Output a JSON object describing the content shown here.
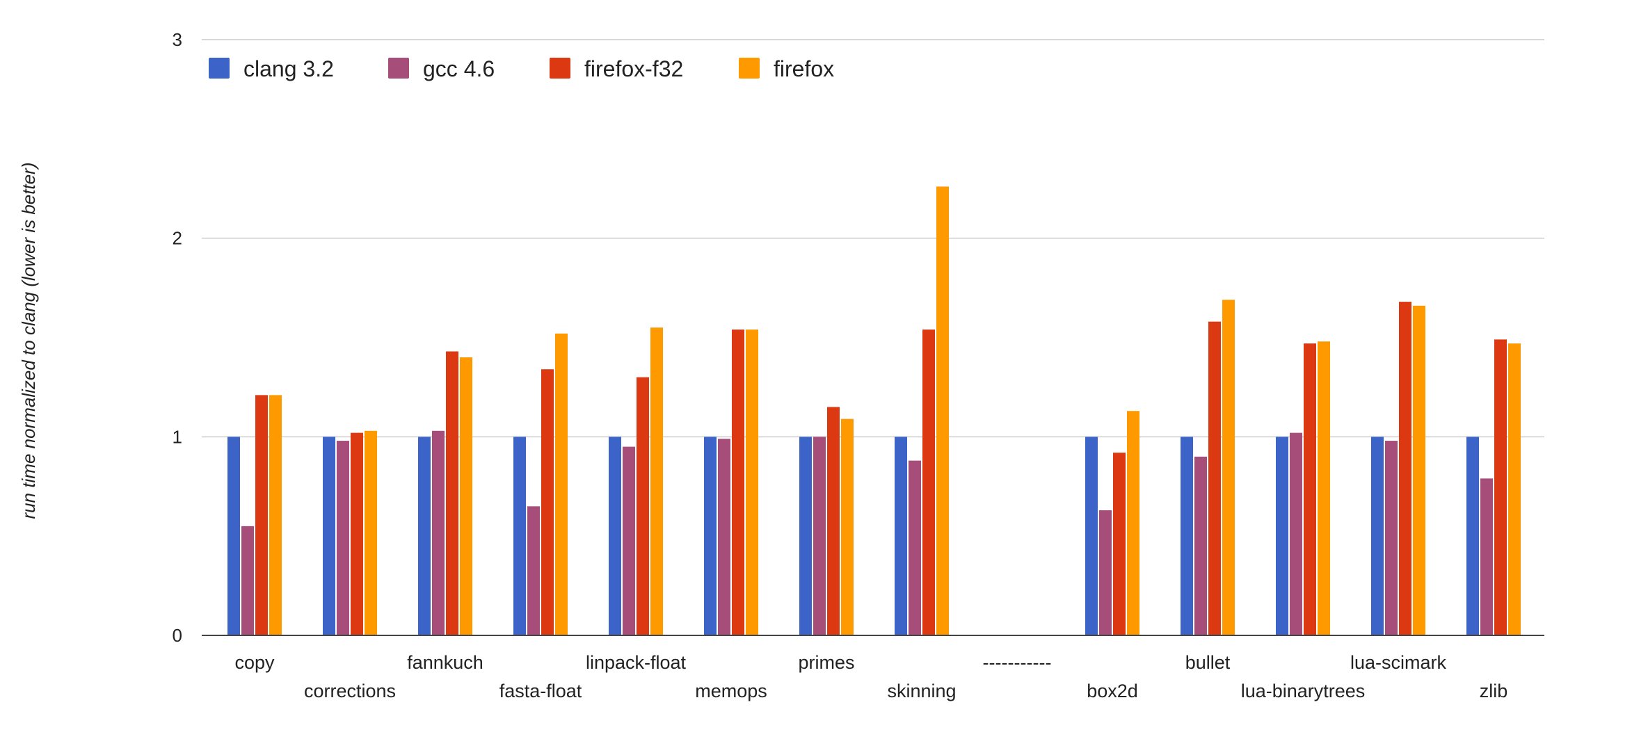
{
  "chart_data": {
    "type": "bar",
    "title": "",
    "xlabel": "",
    "ylabel": "run time normalized to clang (lower is better)",
    "ylim": [
      0,
      3
    ],
    "yticks": [
      "0",
      "1",
      "2",
      "3"
    ],
    "grid": true,
    "legend_position": "top-left",
    "categories": [
      "copy",
      "corrections",
      "fannkuch",
      "fasta-float",
      "linpack-float",
      "memops",
      "primes",
      "skinning",
      "-----------",
      "box2d",
      "bullet",
      "lua-binarytrees",
      "lua-scimark",
      "zlib"
    ],
    "series": [
      {
        "name": "clang 3.2",
        "color": "#3c64c8",
        "values": [
          1.0,
          1.0,
          1.0,
          1.0,
          1.0,
          1.0,
          1.0,
          1.0,
          null,
          1.0,
          1.0,
          1.0,
          1.0,
          1.0
        ]
      },
      {
        "name": "gcc 4.6",
        "color": "#a64d79",
        "values": [
          0.55,
          0.98,
          1.03,
          0.65,
          0.95,
          0.99,
          1.0,
          0.88,
          null,
          0.63,
          0.9,
          1.02,
          0.98,
          0.79
        ]
      },
      {
        "name": "firefox-f32",
        "color": "#dc3912",
        "values": [
          1.21,
          1.02,
          1.43,
          1.34,
          1.3,
          1.54,
          1.15,
          1.54,
          null,
          0.92,
          1.58,
          1.47,
          1.68,
          1.49
        ]
      },
      {
        "name": "firefox",
        "color": "#ff9900",
        "values": [
          1.21,
          1.03,
          1.4,
          1.52,
          1.55,
          1.54,
          1.09,
          2.26,
          null,
          1.13,
          1.69,
          1.48,
          1.66,
          1.47
        ]
      }
    ]
  }
}
